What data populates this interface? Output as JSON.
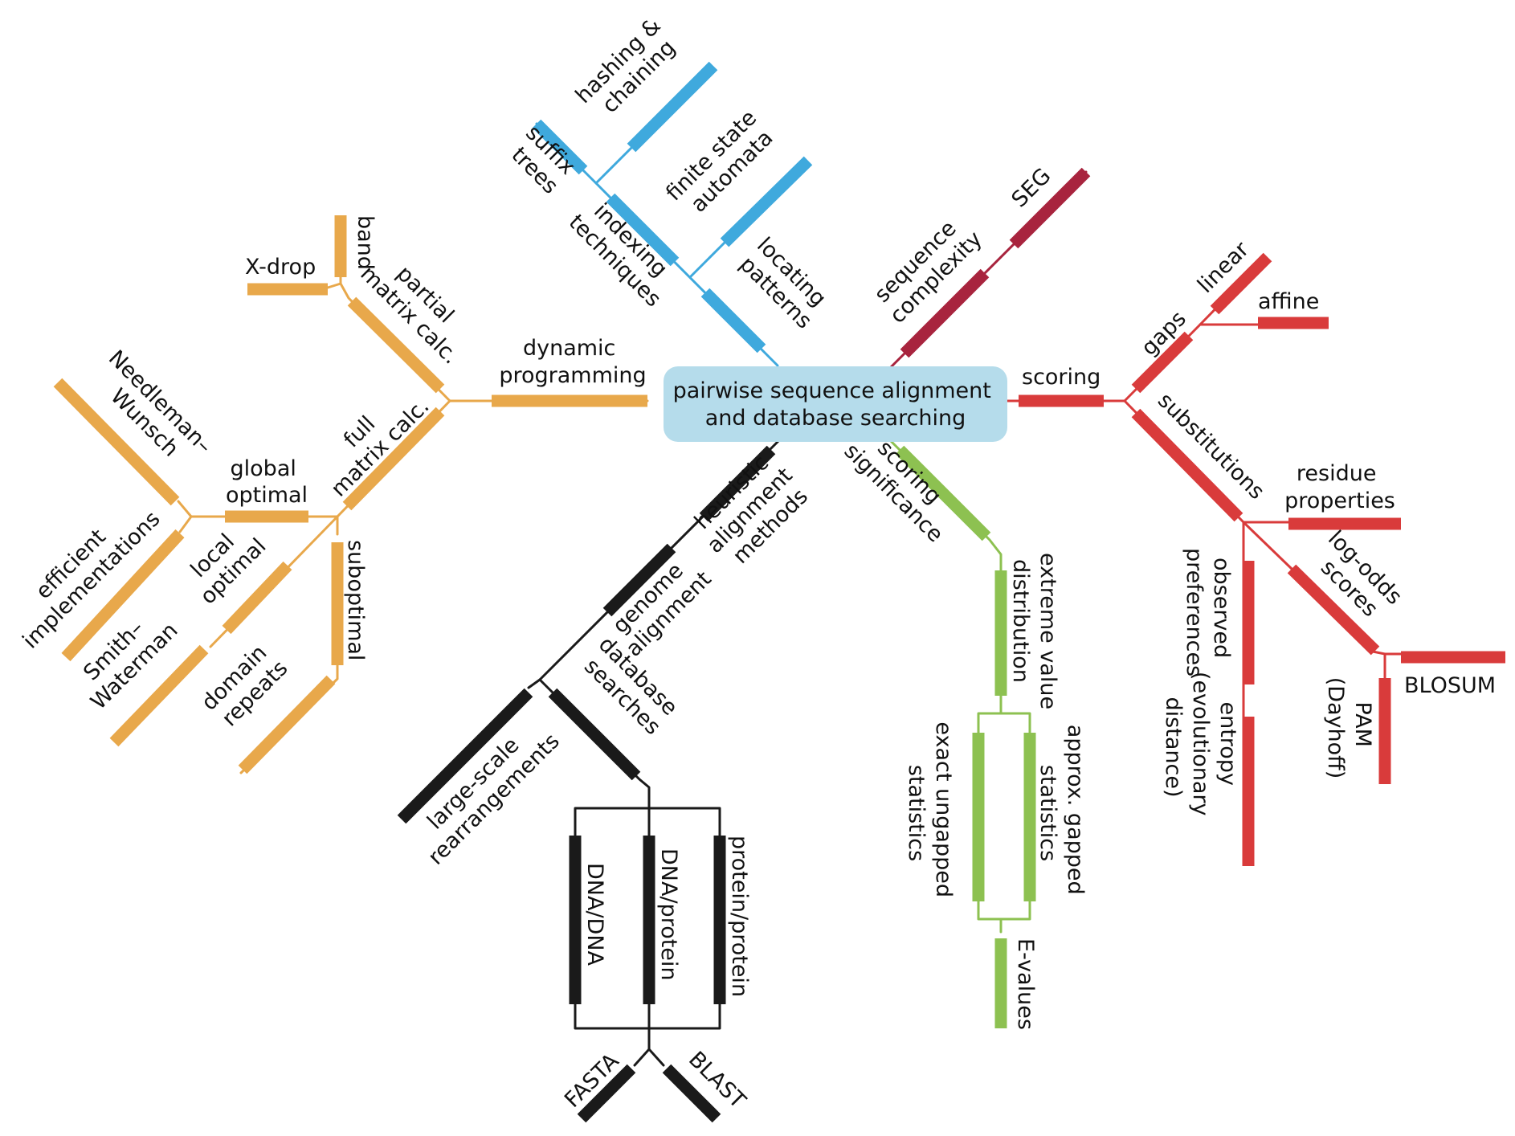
{
  "colors": {
    "dp": "#E8A84B",
    "index": "#3FA9DD",
    "complexity": "#A8243E",
    "scoring": "#D93B3B",
    "significance": "#8DC151",
    "heuristic": "#1A1A1A",
    "center_fill": "#B5DCEB"
  },
  "center": {
    "line1": "pairwise sequence alignment",
    "line2": "and database searching"
  },
  "labels": {
    "dynamic_programming": [
      "dynamic",
      "programming"
    ],
    "partial_matrix": [
      "partial",
      "matrix calc."
    ],
    "band": "band",
    "x_drop_italic": "X",
    "x_drop_rest": "-drop",
    "full_matrix": [
      "full",
      "matrix calc."
    ],
    "global_optimal": [
      "global",
      "optimal"
    ],
    "needleman_wunsch": [
      "Needleman–",
      "Wunsch"
    ],
    "efficient_implementations": [
      "efficient",
      "implementations"
    ],
    "local_optimal": [
      "local",
      "optimal"
    ],
    "smith_waterman": [
      "Smith–",
      "Waterman"
    ],
    "suboptimal": "suboptimal",
    "domain_repeats": [
      "domain",
      "repeats"
    ],
    "hashing_chaining": [
      "hashing &",
      "chaining"
    ],
    "suffix_trees": [
      "suffix",
      "trees"
    ],
    "indexing_techniques": [
      "indexing",
      "techniques"
    ],
    "finite_state_automata": [
      "finite state",
      "automata"
    ],
    "locating_patterns": [
      "locating",
      "patterns"
    ],
    "sequence_complexity": [
      "sequence",
      "complexity"
    ],
    "seg": "SEG",
    "scoring": "scoring",
    "gaps": "gaps",
    "linear": "linear",
    "affine": "affine",
    "substitutions": "substitutions",
    "residue_properties": [
      "residue",
      "properties"
    ],
    "log_odds_scores": [
      "log-odds",
      "scores"
    ],
    "observed_preferences": [
      "observed",
      "preferences"
    ],
    "entropy": [
      "entropy",
      "(evolutionary",
      "distance)"
    ],
    "pam": [
      "PAM",
      "(Dayhoff)"
    ],
    "blosum": "BLOSUM",
    "scoring_significance": [
      "scoring",
      "significance"
    ],
    "extreme_value": [
      "extreme value",
      "distribution"
    ],
    "exact_ungapped": [
      "exact ungapped",
      "statistics"
    ],
    "approx_gapped": [
      "approx. gapped",
      "statistics"
    ],
    "e_values_italic": "E",
    "e_values_rest": "-values",
    "heuristic_methods": [
      "heuristic",
      "alignment",
      "methods"
    ],
    "genome_alignment": [
      "genome",
      "alignment"
    ],
    "database_searches": [
      "database",
      "searches"
    ],
    "large_scale": [
      "large-scale",
      "rearrangements"
    ],
    "dna_dna": "DNA/DNA",
    "dna_protein": "DNA/protein",
    "protein_protein": "protein/protein",
    "fasta": "FASTA",
    "blast": "BLAST"
  }
}
